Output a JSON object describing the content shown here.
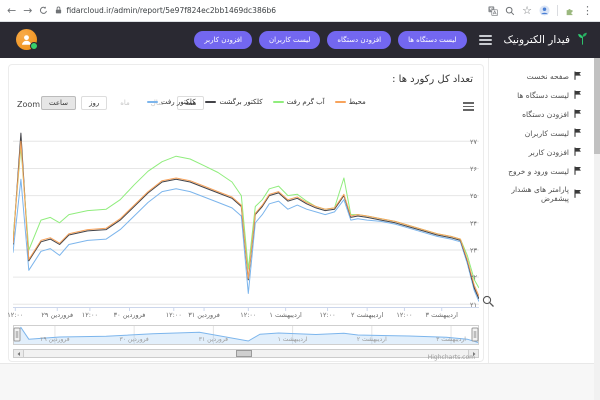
{
  "browser": {
    "url": "fidarcloud.ir/admin/report/5e97f824ec2bb1469dc386b6",
    "icons": {
      "back": "←",
      "forward": "→",
      "star": "☆",
      "menu": "⋮"
    }
  },
  "header": {
    "brand": "فیدار الکترونیک",
    "accent_color": "#7367f0",
    "background_color": "#2a2932",
    "nav_buttons": [
      "لیست دستگاه ها",
      "افزودن دستگاه",
      "لیست کاربران",
      "افزودن کاربر"
    ]
  },
  "sidebar": {
    "items": [
      {
        "label": "صفحه نخست"
      },
      {
        "label": "لیست دستگاه ها"
      },
      {
        "label": "افزودن دستگاه"
      },
      {
        "label": "لیست کاربران"
      },
      {
        "label": "افزودن کاربر"
      },
      {
        "label": "لیست ورود و خروج"
      },
      {
        "label": "پارامتر های هشدار پیشفرض"
      }
    ]
  },
  "chart": {
    "title": "تعداد کل رکورد ها :",
    "zoom_label": "Zoom",
    "range_buttons": [
      {
        "label": "ساعت",
        "state": "selected"
      },
      {
        "label": "روز",
        "state": "normal"
      },
      {
        "label": "ماه",
        "state": "disabled"
      },
      {
        "label": "سال",
        "state": "disabled"
      },
      {
        "label": "همه",
        "state": "normal"
      }
    ],
    "credit": "Highcharts.com"
  },
  "chart_data": {
    "type": "line",
    "title": "تعداد کل رکورد ها :",
    "ylim": [
      20.9,
      27.6
    ],
    "grid": true,
    "legend_position": "top",
    "x_percent": [
      0,
      1.7,
      3.4,
      6,
      8,
      10,
      12,
      16,
      20,
      23,
      26,
      29,
      32,
      35,
      38,
      41,
      44,
      47,
      49,
      50.5,
      52,
      53.5,
      55,
      57,
      59,
      61,
      63,
      65,
      67,
      69,
      71,
      72.5,
      74,
      76,
      79,
      82,
      85,
      88,
      91,
      94,
      96,
      97.5,
      99,
      100
    ],
    "series": [
      {
        "name": "کلکتور رفت",
        "color": "#7cb5ec",
        "values": [
          22.9,
          25.6,
          22.25,
          22.95,
          23.05,
          22.8,
          23.2,
          23.35,
          23.4,
          23.75,
          24.25,
          24.75,
          25.15,
          25.25,
          25.15,
          24.95,
          24.75,
          24.55,
          24.25,
          21.4,
          24.0,
          24.3,
          24.7,
          24.8,
          24.5,
          24.65,
          24.5,
          24.4,
          24.3,
          24.4,
          24.85,
          24.1,
          24.15,
          24.1,
          24.05,
          23.95,
          23.8,
          23.65,
          23.5,
          23.4,
          23.3,
          22.5,
          21.5,
          21.1
        ]
      },
      {
        "name": "کلکتور برگشت",
        "color": "#434348",
        "values": [
          23.2,
          27.3,
          22.6,
          23.3,
          23.4,
          23.2,
          23.55,
          23.7,
          23.75,
          24.1,
          24.6,
          25.1,
          25.5,
          25.6,
          25.5,
          25.3,
          25.1,
          24.9,
          24.6,
          21.9,
          24.3,
          24.6,
          25.0,
          25.1,
          24.8,
          24.9,
          24.7,
          24.55,
          24.45,
          24.5,
          25.0,
          24.2,
          24.25,
          24.2,
          24.1,
          24.0,
          23.85,
          23.7,
          23.55,
          23.45,
          23.35,
          22.6,
          21.6,
          21.2
        ]
      },
      {
        "name": "آب گرم رفت",
        "color": "#90ed7d",
        "values": [
          23.4,
          26.8,
          23.0,
          24.1,
          24.2,
          24.0,
          24.3,
          24.45,
          24.5,
          24.85,
          25.4,
          25.9,
          26.25,
          26.45,
          26.35,
          26.1,
          25.85,
          25.5,
          25.0,
          22.3,
          24.6,
          24.85,
          25.25,
          25.35,
          25.0,
          25.05,
          24.8,
          24.6,
          24.5,
          24.55,
          25.65,
          24.3,
          24.3,
          24.25,
          24.15,
          24.05,
          23.9,
          23.75,
          23.6,
          23.5,
          23.4,
          22.8,
          21.9,
          21.6
        ]
      },
      {
        "name": "محیط",
        "color": "#f7a35c",
        "values": [
          23.25,
          27.0,
          22.65,
          23.35,
          23.45,
          23.25,
          23.6,
          23.75,
          23.8,
          24.15,
          24.65,
          25.15,
          25.55,
          25.65,
          25.55,
          25.35,
          25.15,
          24.95,
          24.65,
          21.95,
          24.35,
          24.65,
          25.05,
          25.15,
          24.85,
          24.95,
          24.75,
          24.6,
          24.5,
          24.55,
          25.05,
          24.25,
          24.3,
          24.25,
          24.15,
          24.05,
          23.9,
          23.75,
          23.6,
          23.5,
          23.4,
          22.65,
          21.7,
          21.3
        ]
      }
    ],
    "y_ticks": [
      {
        "v": 27,
        "label": "۲۷"
      },
      {
        "v": 26,
        "label": "۲۶"
      },
      {
        "v": 25,
        "label": "۲۵"
      },
      {
        "v": 24,
        "label": "۲۴"
      },
      {
        "v": 23,
        "label": "۲۳"
      },
      {
        "v": 22,
        "label": "۲۲"
      },
      {
        "v": 21,
        "label": "۲۱"
      }
    ],
    "x_ticks": [
      {
        "p": 0.5,
        "label": "۱۲:۰۰"
      },
      {
        "p": 9.5,
        "label": "فروردین ۲۹"
      },
      {
        "p": 16.5,
        "label": "۱۲:۰۰"
      },
      {
        "p": 25,
        "label": "فروردین ۳۰"
      },
      {
        "p": 34.5,
        "label": "۱۲:۰۰"
      },
      {
        "p": 41,
        "label": "فروردین ۳۱"
      },
      {
        "p": 50.5,
        "label": "۱۲:۰۰"
      },
      {
        "p": 58.5,
        "label": "اردیبهشت ۱"
      },
      {
        "p": 67.5,
        "label": "۱۲:۰۰"
      },
      {
        "p": 76,
        "label": "اردیبهشت ۲"
      },
      {
        "p": 84,
        "label": "۱۲:۰۰"
      },
      {
        "p": 92,
        "label": "اردیبهشت ۳"
      }
    ],
    "navigator": {
      "color": "#7cb5ec",
      "x": [
        0,
        1.7,
        3.4,
        10,
        20,
        30,
        40,
        50.5,
        53,
        57,
        65,
        71,
        74,
        85,
        93,
        97.5,
        100
      ],
      "values": [
        23.2,
        27.3,
        22.6,
        23.5,
        23.8,
        24.8,
        25.4,
        21.9,
        24.6,
        25.1,
        24.5,
        25.0,
        24.3,
        23.9,
        23.4,
        22.6,
        21.2
      ],
      "labels": [
        {
          "p": 9,
          "label": "فروردین ۲۹"
        },
        {
          "p": 26,
          "label": "فروردین ۳۰"
        },
        {
          "p": 43,
          "label": "فروردین ۳۱"
        },
        {
          "p": 60,
          "label": "اردیبهشت ۱"
        },
        {
          "p": 77,
          "label": "اردیبهشت ۲"
        },
        {
          "p": 94,
          "label": "اردیبهشت ۳"
        }
      ]
    }
  }
}
